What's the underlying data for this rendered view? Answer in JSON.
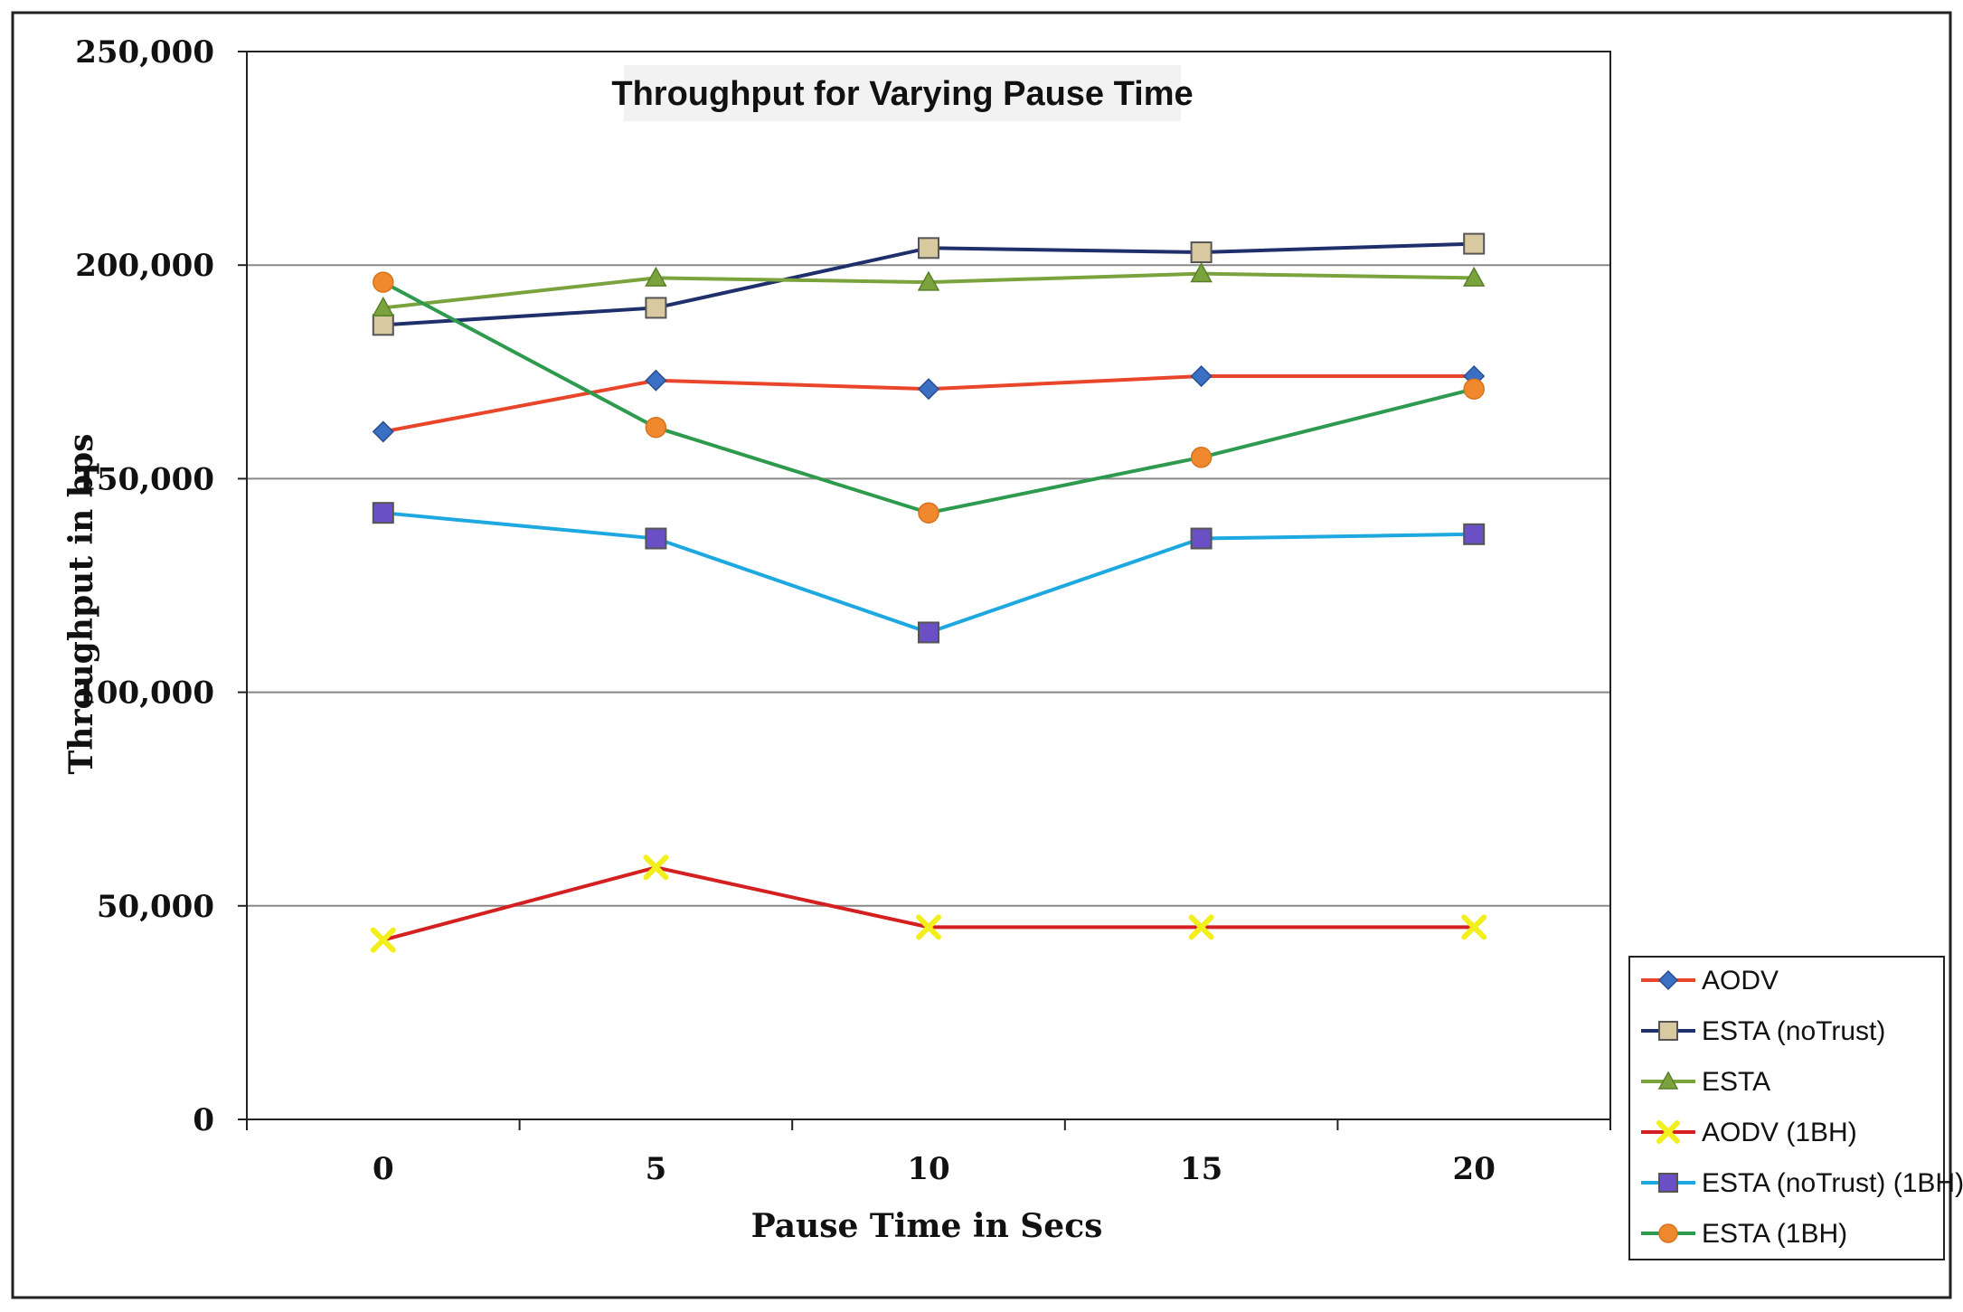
{
  "chart_data": {
    "type": "line",
    "title": "Throughput for Varying Pause Time",
    "xlabel": "Pause Time in Secs",
    "ylabel": "Throughput in bps",
    "categories": [
      "0",
      "5",
      "10",
      "15",
      "20"
    ],
    "ylim": [
      0,
      250000
    ],
    "yticks": [
      0,
      50000,
      100000,
      150000,
      200000,
      250000
    ],
    "ytick_labels": [
      "0",
      "50,000",
      "100,000",
      "150,000",
      "200,000",
      "250,000"
    ],
    "grid": true,
    "legend_position": "bottom-right outside",
    "series": [
      {
        "name": "AODV",
        "values": [
          161000,
          173000,
          171000,
          174000,
          174000
        ],
        "line_color": "#e8452a",
        "marker": "diamond",
        "marker_color": "#3a6fc4"
      },
      {
        "name": "ESTA (noTrust)",
        "values": [
          186000,
          190000,
          204000,
          203000,
          205000
        ],
        "line_color": "#1f2f6b",
        "marker": "square",
        "marker_color": "#d9c9a0"
      },
      {
        "name": "ESTA",
        "values": [
          190000,
          197000,
          196000,
          198000,
          197000
        ],
        "line_color": "#7aa33e",
        "marker": "triangle",
        "marker_color": "#7aa33e"
      },
      {
        "name": "AODV (1BH)",
        "values": [
          42000,
          59000,
          45000,
          45000,
          45000
        ],
        "line_color": "#d42020",
        "marker": "x",
        "marker_color": "#f2ef1c"
      },
      {
        "name": "ESTA (noTrust) (1BH)",
        "values": [
          142000,
          136000,
          114000,
          136000,
          137000
        ],
        "line_color": "#1ea8e0",
        "marker": "square",
        "marker_color": "#6b4fc4"
      },
      {
        "name": "ESTA (1BH)",
        "values": [
          196000,
          162000,
          142000,
          155000,
          171000
        ],
        "line_color": "#2e9a4e",
        "marker": "circle",
        "marker_color": "#f0892e"
      }
    ]
  }
}
